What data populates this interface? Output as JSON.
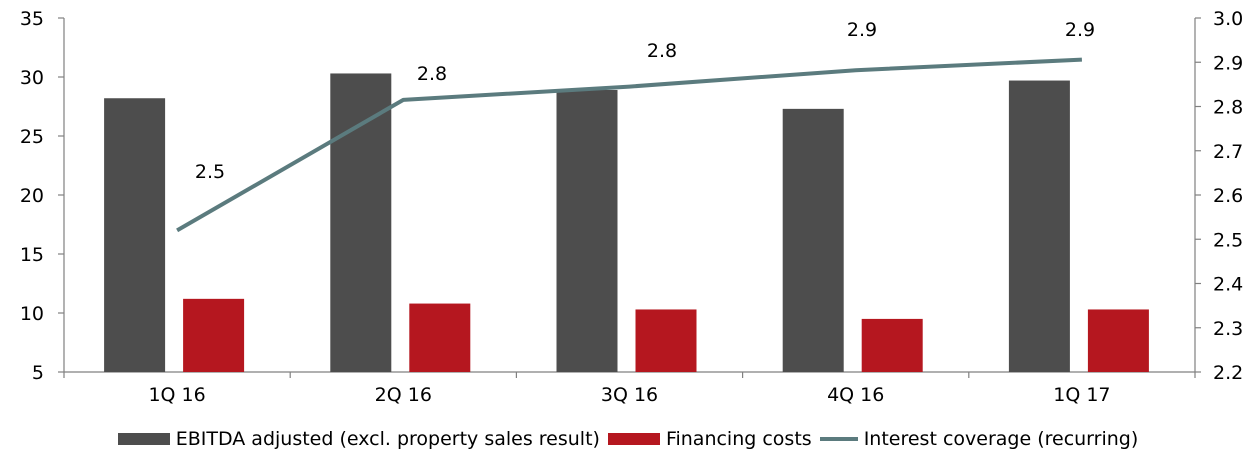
{
  "chart_data": {
    "type": "bar",
    "title": "",
    "categories": [
      "1Q 16",
      "2Q 16",
      "3Q 16",
      "4Q 16",
      "1Q 17"
    ],
    "series": [
      {
        "name": "EBITDA adjusted (excl. property sales result)",
        "kind": "bar",
        "axis": "left",
        "color": "#4d4d4d",
        "values": [
          28.2,
          30.3,
          28.9,
          27.3,
          29.7
        ]
      },
      {
        "name": "Financing costs",
        "kind": "bar",
        "axis": "left",
        "color": "#b5171f",
        "values": [
          11.2,
          10.8,
          10.3,
          9.5,
          10.3
        ]
      },
      {
        "name": "Interest coverage (recurring)",
        "kind": "line",
        "axis": "right",
        "color": "#5b7b7e",
        "values": [
          2.52,
          2.815,
          2.845,
          2.882,
          2.906
        ],
        "data_labels": [
          "2.5",
          "2.8",
          "2.8",
          "2.9",
          "2.9"
        ]
      }
    ],
    "left_axis": {
      "min": 5,
      "max": 35,
      "ticks": [
        "5",
        "10",
        "15",
        "20",
        "25",
        "30",
        "35"
      ]
    },
    "right_axis": {
      "min": 2.2,
      "max": 3.0,
      "ticks": [
        "2.2",
        "2.3",
        "2.4",
        "2.5",
        "2.6",
        "2.7",
        "2.8",
        "2.9",
        "3.0"
      ]
    },
    "grid": false,
    "legend_position": "bottom"
  }
}
